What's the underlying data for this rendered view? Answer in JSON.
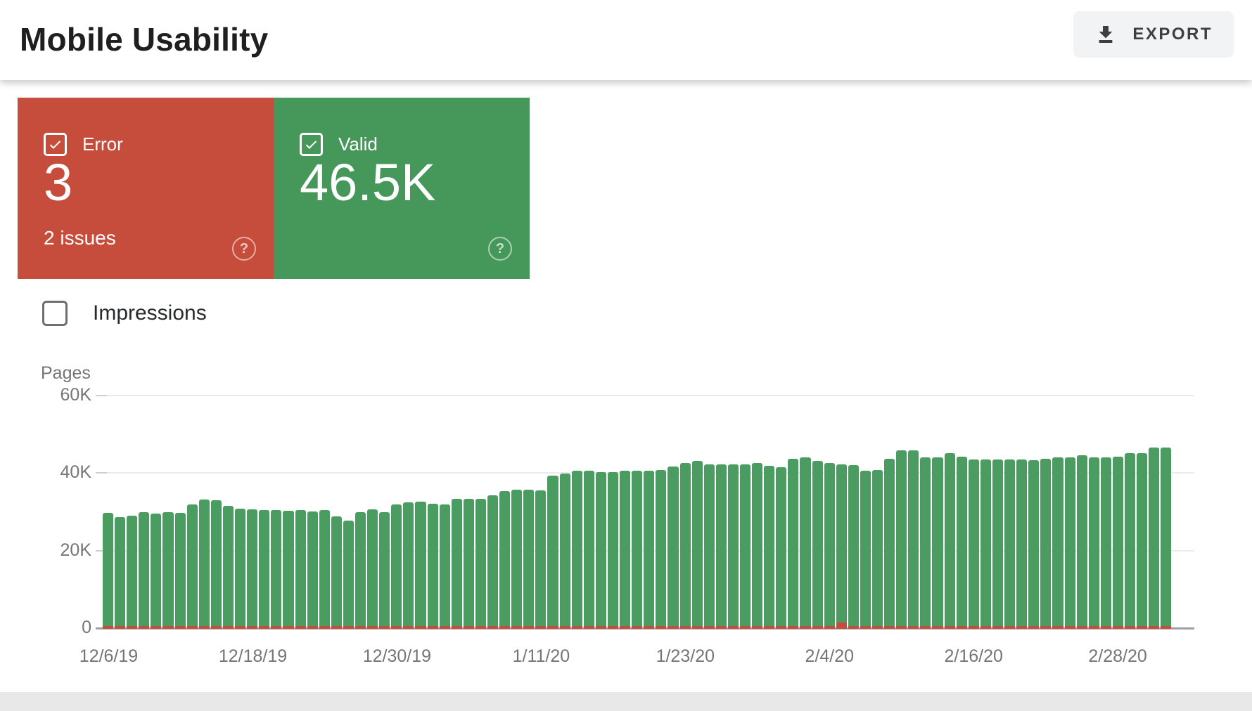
{
  "header": {
    "title": "Mobile Usability",
    "export_label": "EXPORT"
  },
  "cards": {
    "error": {
      "label": "Error",
      "value": "3",
      "sub": "2 issues",
      "checked": true,
      "color": "#c64c3c",
      "help_glyph": "?"
    },
    "valid": {
      "label": "Valid",
      "value": "46.5K",
      "checked": true,
      "color": "#45985a",
      "help_glyph": "?"
    }
  },
  "impressions": {
    "label": "Impressions",
    "checked": false
  },
  "chart_data": {
    "type": "bar",
    "title": "",
    "ylabel": "Pages",
    "xlabel": "",
    "ylim": [
      0,
      60000
    ],
    "grid": true,
    "legend_position": "none",
    "yticks": [
      "60K",
      "40K",
      "20K",
      "0"
    ],
    "ytick_values": [
      60000,
      40000,
      20000,
      0
    ],
    "xtick_labels": [
      "12/6/19",
      "12/18/19",
      "12/30/19",
      "1/11/20",
      "1/23/20",
      "2/4/20",
      "2/16/20",
      "2/28/20"
    ],
    "xtick_indices": [
      0,
      12,
      24,
      36,
      48,
      60,
      72,
      84
    ],
    "x": [
      "12/6/19",
      "12/7/19",
      "12/8/19",
      "12/9/19",
      "12/10/19",
      "12/11/19",
      "12/12/19",
      "12/13/19",
      "12/14/19",
      "12/15/19",
      "12/16/19",
      "12/17/19",
      "12/18/19",
      "12/19/19",
      "12/20/19",
      "12/21/19",
      "12/22/19",
      "12/23/19",
      "12/24/19",
      "12/25/19",
      "12/26/19",
      "12/27/19",
      "12/28/19",
      "12/29/19",
      "12/30/19",
      "12/31/19",
      "1/1/20",
      "1/2/20",
      "1/3/20",
      "1/4/20",
      "1/5/20",
      "1/6/20",
      "1/7/20",
      "1/8/20",
      "1/9/20",
      "1/10/20",
      "1/11/20",
      "1/12/20",
      "1/13/20",
      "1/14/20",
      "1/15/20",
      "1/16/20",
      "1/17/20",
      "1/18/20",
      "1/19/20",
      "1/20/20",
      "1/21/20",
      "1/22/20",
      "1/23/20",
      "1/24/20",
      "1/25/20",
      "1/26/20",
      "1/27/20",
      "1/28/20",
      "1/29/20",
      "1/30/20",
      "1/31/20",
      "2/1/20",
      "2/2/20",
      "2/3/20",
      "2/4/20",
      "2/5/20",
      "2/6/20",
      "2/7/20",
      "2/8/20",
      "2/9/20",
      "2/10/20",
      "2/11/20",
      "2/12/20",
      "2/13/20",
      "2/14/20",
      "2/15/20",
      "2/16/20",
      "2/17/20",
      "2/18/20",
      "2/19/20",
      "2/20/20",
      "2/21/20",
      "2/22/20",
      "2/23/20",
      "2/24/20",
      "2/25/20",
      "2/26/20",
      "2/27/20",
      "2/28/20",
      "2/29/20",
      "3/1/20",
      "3/2/20",
      "3/3/20"
    ],
    "series": [
      {
        "name": "Valid",
        "color": "#4b9c61",
        "values": [
          29500,
          28400,
          28800,
          29700,
          29400,
          29700,
          29600,
          31800,
          33000,
          32900,
          31300,
          30700,
          30400,
          30200,
          30200,
          30100,
          30200,
          30000,
          30200,
          28600,
          27600,
          29800,
          30500,
          29800,
          31700,
          32200,
          32400,
          31900,
          31800,
          33100,
          33200,
          33100,
          34000,
          35100,
          35500,
          35600,
          35400,
          39200,
          39700,
          40500,
          40400,
          40100,
          40000,
          40400,
          40500,
          40400,
          40700,
          41600,
          42400,
          42900,
          42000,
          42000,
          42100,
          42000,
          42500,
          41700,
          41300,
          43600,
          43800,
          42900,
          42400,
          42000,
          41900,
          40400,
          40600,
          43500,
          45700,
          45600,
          43900,
          43800,
          44900,
          44100,
          43400,
          43400,
          43400,
          43300,
          43400,
          43200,
          43500,
          43800,
          43900,
          44400,
          43900,
          43800,
          44100,
          44900,
          44900,
          46400,
          46500
        ]
      },
      {
        "name": "Error",
        "color": "#c64c3c",
        "values": [
          3,
          3,
          3,
          3,
          3,
          3,
          3,
          3,
          3,
          3,
          3,
          3,
          3,
          3,
          3,
          3,
          3,
          3,
          3,
          3,
          3,
          3,
          3,
          3,
          3,
          3,
          3,
          3,
          3,
          3,
          3,
          3,
          3,
          3,
          3,
          3,
          3,
          3,
          3,
          3,
          3,
          3,
          3,
          3,
          3,
          3,
          3,
          3,
          3,
          3,
          3,
          3,
          3,
          3,
          3,
          3,
          3,
          3,
          3,
          3,
          3,
          900,
          3,
          3,
          3,
          3,
          3,
          3,
          3,
          3,
          3,
          3,
          3,
          3,
          3,
          3,
          3,
          3,
          3,
          3,
          3,
          3,
          3,
          3,
          3,
          3,
          3,
          3,
          3
        ]
      }
    ]
  }
}
